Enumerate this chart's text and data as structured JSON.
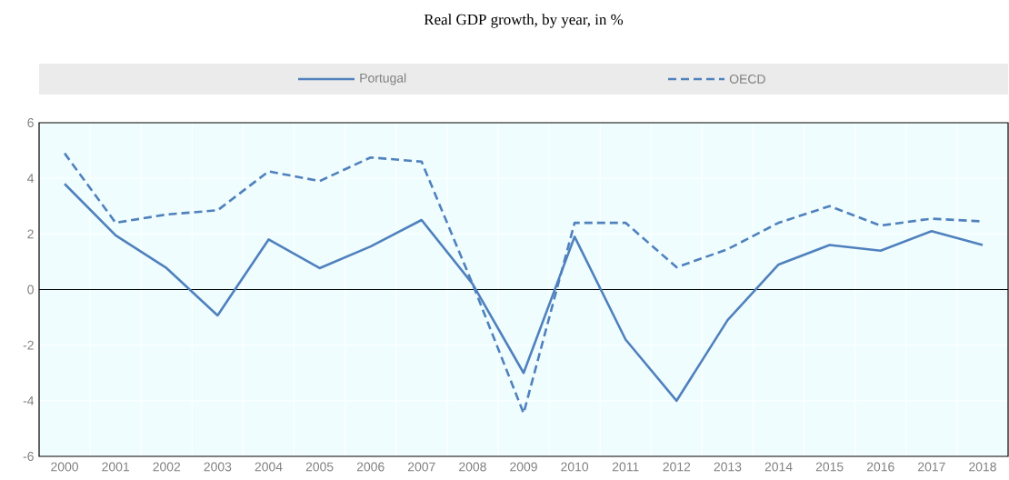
{
  "chart_data": {
    "type": "line",
    "title": "Real GDP growth, by year, in %",
    "categories": [
      "2000",
      "2001",
      "2002",
      "2003",
      "2004",
      "2005",
      "2006",
      "2007",
      "2008",
      "2009",
      "2010",
      "2011",
      "2012",
      "2013",
      "2014",
      "2015",
      "2016",
      "2017",
      "2018"
    ],
    "series": [
      {
        "name": "Portugal",
        "color": "#4f81bd",
        "line_style": "solid",
        "values": [
          3.8,
          1.95,
          0.77,
          -0.93,
          1.8,
          0.77,
          1.55,
          2.5,
          0.2,
          -3.0,
          1.9,
          -1.8,
          -4.0,
          -1.1,
          0.9,
          1.6,
          1.4,
          2.1,
          1.6
        ]
      },
      {
        "name": "OECD",
        "color": "#4f81bd",
        "line_style": "dashed",
        "values": [
          4.9,
          2.4,
          2.7,
          2.85,
          4.25,
          3.9,
          4.75,
          4.6,
          0.2,
          -4.45,
          2.4,
          2.4,
          0.8,
          1.45,
          2.4,
          3.0,
          2.3,
          2.55,
          2.45
        ]
      }
    ],
    "ylim": [
      -6,
      6
    ],
    "yticks": [
      -6,
      -4,
      -2,
      0,
      2,
      4,
      6
    ],
    "ref_lines": [
      {
        "axis": "y",
        "value": 0,
        "color": "#000000"
      }
    ],
    "grid": true,
    "legend": "top",
    "marker": "none"
  }
}
